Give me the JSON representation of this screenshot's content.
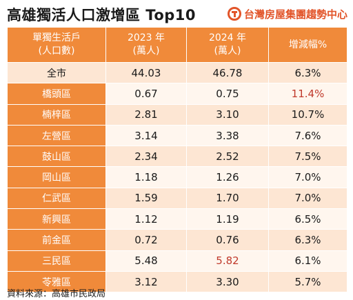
{
  "title": "高雄獨活人口激增區 Top10",
  "brand": {
    "name": "台灣房屋集團趨勢中心",
    "logo_icon": "taiwan-realty-logo-icon",
    "color": "#e2552a"
  },
  "header": {
    "col_city_line1": "單獨生活戶",
    "col_city_line2": "(人口數)",
    "col_2023_line1": "2023 年",
    "col_2023_line2": "(萬人)",
    "col_2024_line1": "2024 年",
    "col_2024_line2": "(萬人)",
    "col_growth": "增減幅%"
  },
  "rows": [
    {
      "city": "全市",
      "y2023": "44.03",
      "y2024": "46.78",
      "growth": "6.3%"
    },
    {
      "city": "橋頭區",
      "y2023": "0.67",
      "y2024": "0.75",
      "growth": "11.4%"
    },
    {
      "city": "楠梓區",
      "y2023": "2.81",
      "y2024": "3.10",
      "growth": "10.7%"
    },
    {
      "city": "左營區",
      "y2023": "3.14",
      "y2024": "3.38",
      "growth": "7.6%"
    },
    {
      "city": "鼓山區",
      "y2023": "2.34",
      "y2024": "2.52",
      "growth": "7.5%"
    },
    {
      "city": "岡山區",
      "y2023": "1.18",
      "y2024": "1.26",
      "growth": "7.0%"
    },
    {
      "city": "仁武區",
      "y2023": "1.59",
      "y2024": "1.70",
      "growth": "7.0%"
    },
    {
      "city": "新興區",
      "y2023": "1.12",
      "y2024": "1.19",
      "growth": "6.5%"
    },
    {
      "city": "前金區",
      "y2023": "0.72",
      "y2024": "0.76",
      "growth": "6.3%"
    },
    {
      "city": "三民區",
      "y2023": "5.48",
      "y2024": "5.82",
      "growth": "6.1%"
    },
    {
      "city": "苓雅區",
      "y2023": "3.12",
      "y2024": "3.30",
      "growth": "5.7%"
    }
  ],
  "colors": {
    "header_orange": "#f08a3a",
    "row_peach": "#fde6d3",
    "highlight_red": "#c0392b"
  },
  "source": "資料來源：高雄市民政局"
}
